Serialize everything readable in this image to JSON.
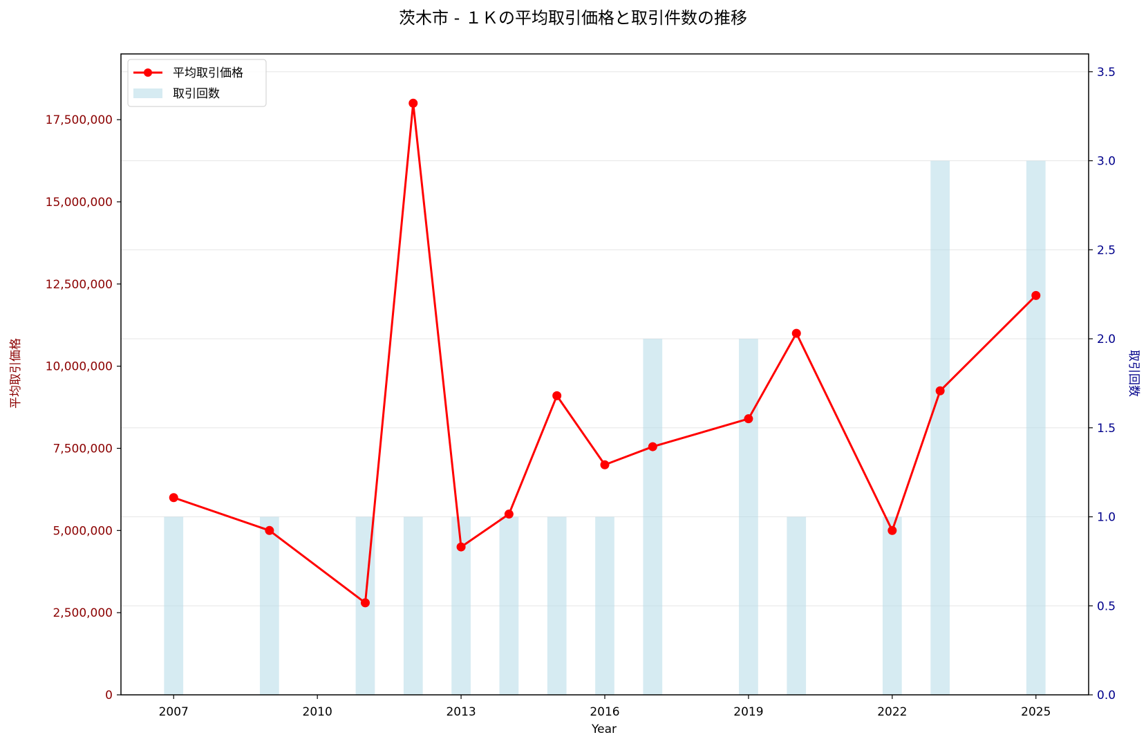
{
  "chart_data": {
    "type": "bar+line",
    "title": "茨木市 - １Ｋの平均取引価格と取引件数の推移",
    "xlabel": "Year",
    "ylabel_left": "平均取引価格",
    "ylabel_right": "取引回数",
    "x_ticks": [
      "2007",
      "2010",
      "2013",
      "2016",
      "2019",
      "2022",
      "2025"
    ],
    "y_left_ticks": [
      "0",
      "2,500,000",
      "5,000,000",
      "7,500,000",
      "10,000,000",
      "12,500,000",
      "15,000,000",
      "17,500,000"
    ],
    "y_right_ticks": [
      "0.0",
      "0.5",
      "1.0",
      "1.5",
      "2.0",
      "2.5",
      "3.0",
      "3.5"
    ],
    "xlim": [
      2005.9,
      2026.1
    ],
    "ylim_left": [
      0,
      19500000
    ],
    "ylim_right": [
      0,
      3.6
    ],
    "grid": true,
    "legend_position": "upper-left",
    "colors": {
      "line": "#ff0000",
      "bar": "#add8e6",
      "left_axis": "#8b0000",
      "right_axis": "#00008b"
    },
    "series": [
      {
        "name": "平均取引価格",
        "type": "line",
        "axis": "left",
        "x": [
          2007,
          2009,
          2011,
          2012,
          2013,
          2014,
          2015,
          2016,
          2017,
          2019,
          2020,
          2022,
          2023,
          2025
        ],
        "values": [
          6000000,
          5000000,
          2800000,
          18000000,
          4500000,
          5500000,
          9100000,
          7000000,
          7550000,
          8400000,
          11000000,
          5000000,
          9250000,
          12150000
        ]
      },
      {
        "name": "取引回数",
        "type": "bar",
        "axis": "right",
        "x": [
          2007,
          2009,
          2011,
          2012,
          2013,
          2014,
          2015,
          2016,
          2017,
          2019,
          2020,
          2022,
          2023,
          2025
        ],
        "values": [
          1,
          1,
          1,
          1,
          1,
          1,
          1,
          1,
          2,
          2,
          1,
          1,
          3,
          3
        ]
      }
    ]
  }
}
